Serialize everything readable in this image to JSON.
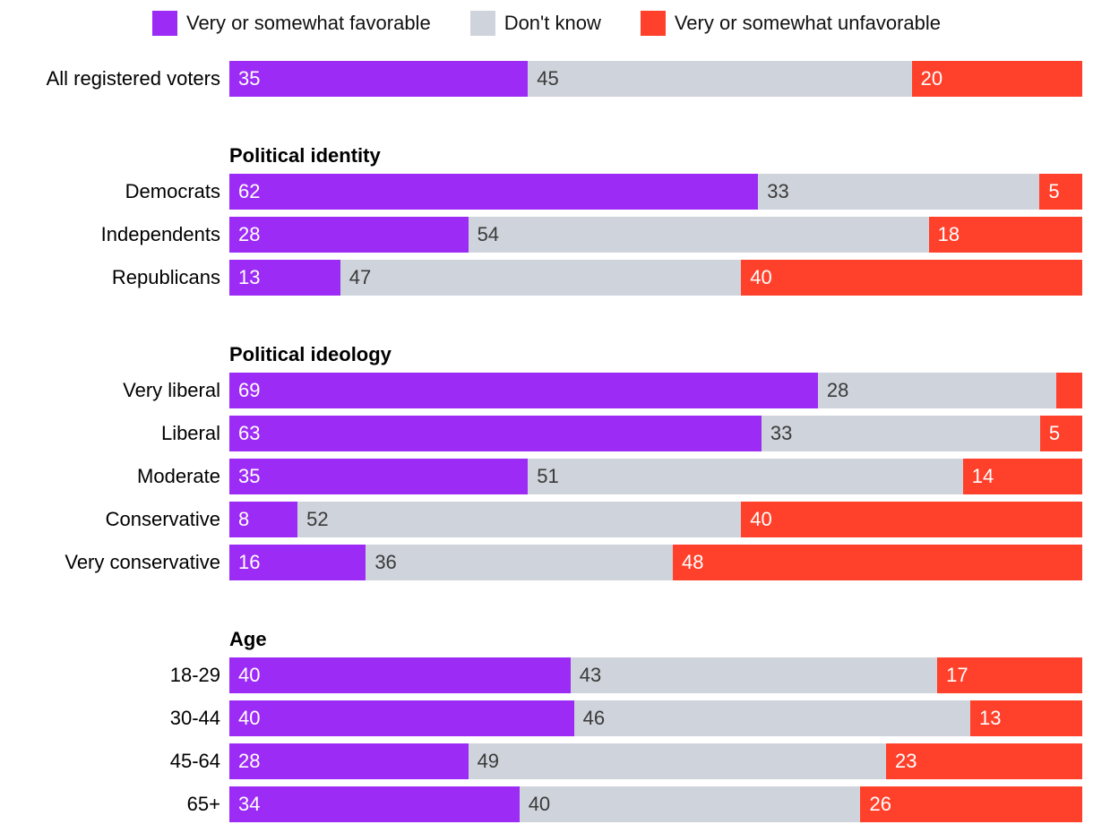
{
  "colors": {
    "favorable": "#9C2CF5",
    "dont_know": "#CFD3DB",
    "unfavorable": "#FF412B",
    "value_on_dark": "#FFFFFF",
    "value_on_light": "#3A3A3A",
    "row_label": "#000000"
  },
  "legend": {
    "items": [
      {
        "key": "favorable",
        "label": "Very or somewhat favorable",
        "color": "#9C2CF5"
      },
      {
        "key": "dont_know",
        "label": "Don't know",
        "color": "#CFD3DB"
      },
      {
        "key": "unfavorable",
        "label": "Very or somewhat unfavorable",
        "color": "#FF412B"
      }
    ]
  },
  "chart_data": {
    "type": "bar",
    "orientation": "horizontal",
    "stacked": true,
    "xlim": [
      0,
      100
    ],
    "grid": false,
    "legend_position": "top-center",
    "series_names": [
      "Very or somewhat favorable",
      "Don't know",
      "Very or somewhat unfavorable"
    ],
    "sections": [
      {
        "header": "",
        "rows": [
          {
            "label": "All registered voters",
            "values": [
              35,
              45,
              20
            ],
            "value_labels": [
              "35",
              "45",
              "20"
            ]
          }
        ]
      },
      {
        "header": "Political identity",
        "rows": [
          {
            "label": "Democrats",
            "values": [
              62,
              33,
              5
            ],
            "value_labels": [
              "62",
              "33",
              "5"
            ]
          },
          {
            "label": "Independents",
            "values": [
              28,
              54,
              18
            ],
            "value_labels": [
              "28",
              "54",
              "18"
            ]
          },
          {
            "label": "Republicans",
            "values": [
              13,
              47,
              40
            ],
            "value_labels": [
              "13",
              "47",
              "40"
            ]
          }
        ]
      },
      {
        "header": "Political ideology",
        "rows": [
          {
            "label": "Very liberal",
            "values": [
              69,
              28,
              3
            ],
            "value_labels": [
              "69",
              "28",
              ""
            ]
          },
          {
            "label": "Liberal",
            "values": [
              63,
              33,
              5
            ],
            "value_labels": [
              "63",
              "33",
              "5"
            ]
          },
          {
            "label": "Moderate",
            "values": [
              35,
              51,
              14
            ],
            "value_labels": [
              "35",
              "51",
              "14"
            ]
          },
          {
            "label": "Conservative",
            "values": [
              8,
              52,
              40
            ],
            "value_labels": [
              "8",
              "52",
              "40"
            ]
          },
          {
            "label": "Very conservative",
            "values": [
              16,
              36,
              48
            ],
            "value_labels": [
              "16",
              "36",
              "48"
            ]
          }
        ]
      },
      {
        "header": "Age",
        "rows": [
          {
            "label": "18-29",
            "values": [
              40,
              43,
              17
            ],
            "value_labels": [
              "40",
              "43",
              "17"
            ]
          },
          {
            "label": "30-44",
            "values": [
              40,
              46,
              13
            ],
            "value_labels": [
              "40",
              "46",
              "13"
            ]
          },
          {
            "label": "45-64",
            "values": [
              28,
              49,
              23
            ],
            "value_labels": [
              "28",
              "49",
              "23"
            ]
          },
          {
            "label": "65+",
            "values": [
              34,
              40,
              26
            ],
            "value_labels": [
              "34",
              "40",
              "26"
            ]
          }
        ]
      }
    ]
  }
}
